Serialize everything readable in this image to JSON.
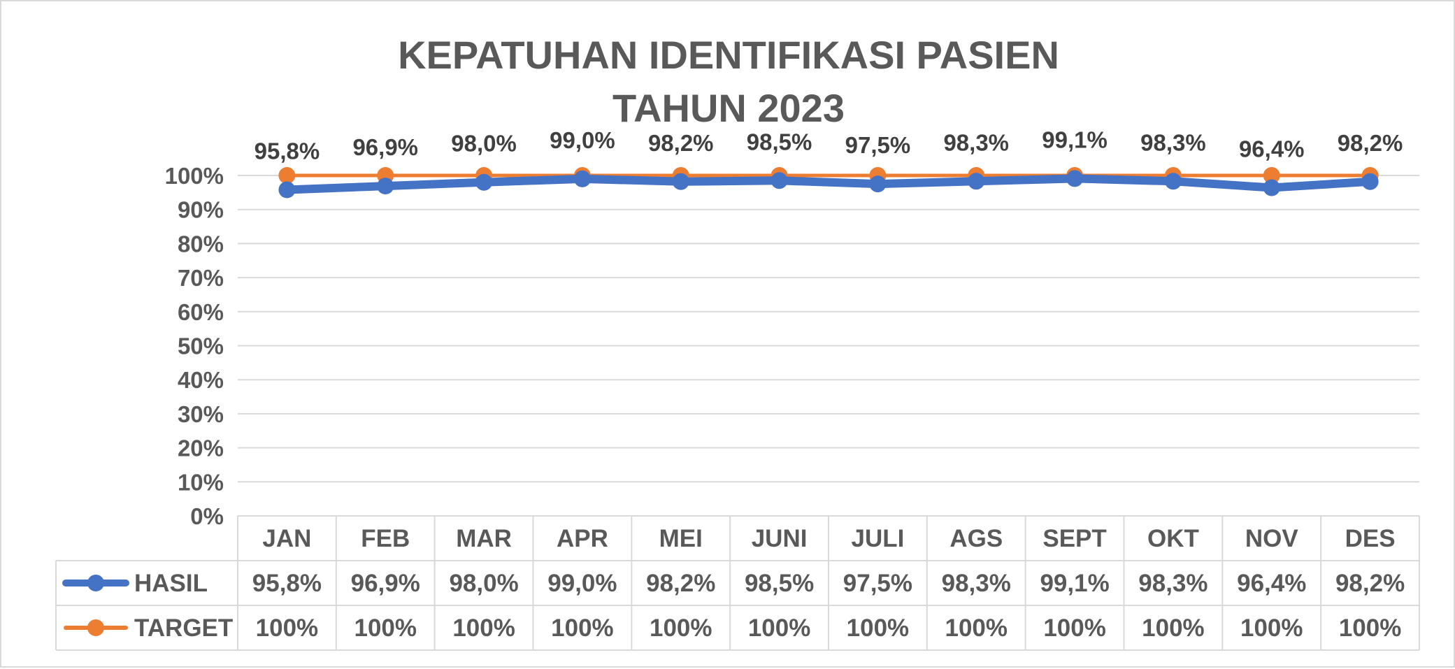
{
  "chart_data": {
    "type": "line",
    "title": "KEPATUHAN IDENTIFIKASI PASIEN",
    "subtitle": "TAHUN 2023",
    "categories": [
      "JAN",
      "FEB",
      "MAR",
      "APR",
      "MEI",
      "JUNI",
      "JULI",
      "AGS",
      "SEPT",
      "OKT",
      "NOV",
      "DES"
    ],
    "ylim": [
      0,
      100
    ],
    "yticks": [
      "0%",
      "10%",
      "20%",
      "30%",
      "40%",
      "50%",
      "60%",
      "70%",
      "80%",
      "90%",
      "100%"
    ],
    "grid": true,
    "legend": "data-table",
    "series": [
      {
        "name": "HASIL",
        "color": "#4472C4",
        "values": [
          95.8,
          96.9,
          98.0,
          99.0,
          98.2,
          98.5,
          97.5,
          98.3,
          99.1,
          98.3,
          96.4,
          98.2
        ],
        "labels": [
          "95,8%",
          "96,9%",
          "98,0%",
          "99,0%",
          "98,2%",
          "98,5%",
          "97,5%",
          "98,3%",
          "99,1%",
          "98,3%",
          "96,4%",
          "98,2%"
        ]
      },
      {
        "name": "TARGET",
        "color": "#ED7D31",
        "values": [
          100,
          100,
          100,
          100,
          100,
          100,
          100,
          100,
          100,
          100,
          100,
          100
        ],
        "labels": [
          "100%",
          "100%",
          "100%",
          "100%",
          "100%",
          "100%",
          "100%",
          "100%",
          "100%",
          "100%",
          "100%",
          "100%"
        ]
      }
    ]
  }
}
